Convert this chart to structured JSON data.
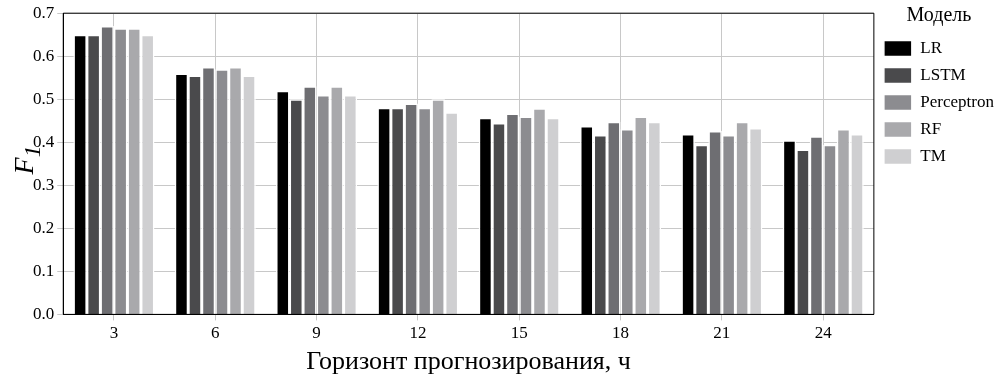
{
  "chart_data": {
    "type": "bar",
    "xlabel": "Горизонт прогнозирования, ч",
    "ylabel": "F$_{1}$",
    "legend_title": "Модель",
    "categories": [
      "3",
      "6",
      "9",
      "12",
      "15",
      "18",
      "21",
      "24"
    ],
    "series": [
      {
        "name": "LR",
        "color": "#000000",
        "values": [
          0.65,
          0.56,
          0.52,
          0.48,
          0.457,
          0.438,
          0.419,
          0.405
        ]
      },
      {
        "name": "LSTM",
        "color": "#4a4a4c",
        "values": [
          0.65,
          0.555,
          0.5,
          0.48,
          0.445,
          0.417,
          0.394,
          0.383
        ]
      },
      {
        "color": "#6e6e72",
        "values": [
          0.67,
          0.575,
          0.53,
          0.49,
          0.467,
          0.448,
          0.426,
          0.414
        ]
      },
      {
        "name": "Perceptron",
        "color": "#8c8c90",
        "values": [
          0.665,
          0.57,
          0.51,
          0.48,
          0.46,
          0.431,
          0.417,
          0.394
        ]
      },
      {
        "name": "RF",
        "color": "#a9a9ac",
        "values": [
          0.665,
          0.575,
          0.53,
          0.5,
          0.479,
          0.46,
          0.448,
          0.431
        ]
      },
      {
        "name": "TM",
        "color": "#cfcfd1",
        "values": [
          0.65,
          0.555,
          0.51,
          0.47,
          0.457,
          0.448,
          0.433,
          0.419
        ]
      }
    ],
    "ylim": [
      0,
      0.7
    ],
    "yticks": [
      {
        "value": 0,
        "label": "0.0"
      },
      0.1,
      0.2,
      0.3,
      0.4,
      0.5,
      0.6,
      0.7
    ],
    "grid": true,
    "legend": "right"
  }
}
